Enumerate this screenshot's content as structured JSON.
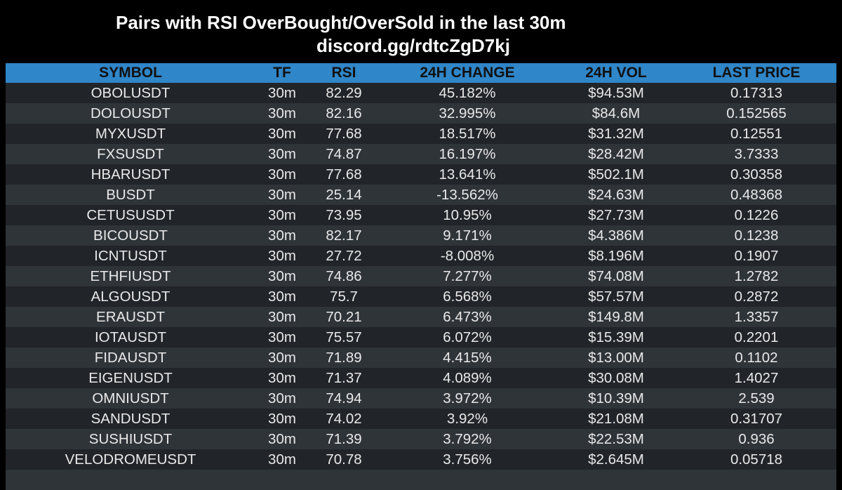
{
  "header": {
    "title": "Pairs with RSI OverBought/OverSold in the last 30m",
    "subtitle": "discord.gg/rdtcZgD7kj"
  },
  "table": {
    "columns": [
      "SYMBOL",
      "TF",
      "RSI",
      "24H CHANGE",
      "24H VOL",
      "LAST PRICE"
    ],
    "rows": [
      [
        "OBOLUSDT",
        "30m",
        "82.29",
        "45.182%",
        "$94.53M",
        "0.17313"
      ],
      [
        "DOLOUSDT",
        "30m",
        "82.16",
        "32.995%",
        "$84.6M",
        "0.152565"
      ],
      [
        "MYXUSDT",
        "30m",
        "77.68",
        "18.517%",
        "$31.32M",
        "0.12551"
      ],
      [
        "FXSUSDT",
        "30m",
        "74.87",
        "16.197%",
        "$28.42M",
        "3.7333"
      ],
      [
        "HBARUSDT",
        "30m",
        "77.68",
        "13.641%",
        "$502.1M",
        "0.30358"
      ],
      [
        "BUSDT",
        "30m",
        "25.14",
        "-13.562%",
        "$24.63M",
        "0.48368"
      ],
      [
        "CETUSUSDT",
        "30m",
        "73.95",
        "10.95%",
        "$27.73M",
        "0.1226"
      ],
      [
        "BICOUSDT",
        "30m",
        "82.17",
        "9.171%",
        "$4.386M",
        "0.1238"
      ],
      [
        "ICNTUSDT",
        "30m",
        "27.72",
        "-8.008%",
        "$8.196M",
        "0.1907"
      ],
      [
        "ETHFIUSDT",
        "30m",
        "74.86",
        "7.277%",
        "$74.08M",
        "1.2782"
      ],
      [
        "ALGOUSDT",
        "30m",
        "75.7",
        "6.568%",
        "$57.57M",
        "0.2872"
      ],
      [
        "ERAUSDT",
        "30m",
        "70.21",
        "6.473%",
        "$149.8M",
        "1.3357"
      ],
      [
        "IOTAUSDT",
        "30m",
        "75.57",
        "6.072%",
        "$15.39M",
        "0.2201"
      ],
      [
        "FIDAUSDT",
        "30m",
        "71.89",
        "4.415%",
        "$13.00M",
        "0.1102"
      ],
      [
        "EIGENUSDT",
        "30m",
        "71.37",
        "4.089%",
        "$30.08M",
        "1.4027"
      ],
      [
        "OMNIUSDT",
        "30m",
        "74.94",
        "3.972%",
        "$10.39M",
        "2.539"
      ],
      [
        "SANDUSDT",
        "30m",
        "74.02",
        "3.92%",
        "$21.08M",
        "0.31707"
      ],
      [
        "SUSHIUSDT",
        "30m",
        "71.39",
        "3.792%",
        "$22.53M",
        "0.936"
      ],
      [
        "VELODROMEUSDT",
        "30m",
        "70.78",
        "3.756%",
        "$2.645M",
        "0.05718"
      ]
    ]
  },
  "colors": {
    "background": "#000000",
    "header_bg": "#2f86c8",
    "row_dark": "#212429",
    "row_light": "#2f3439",
    "text": "#e9e9e9"
  }
}
